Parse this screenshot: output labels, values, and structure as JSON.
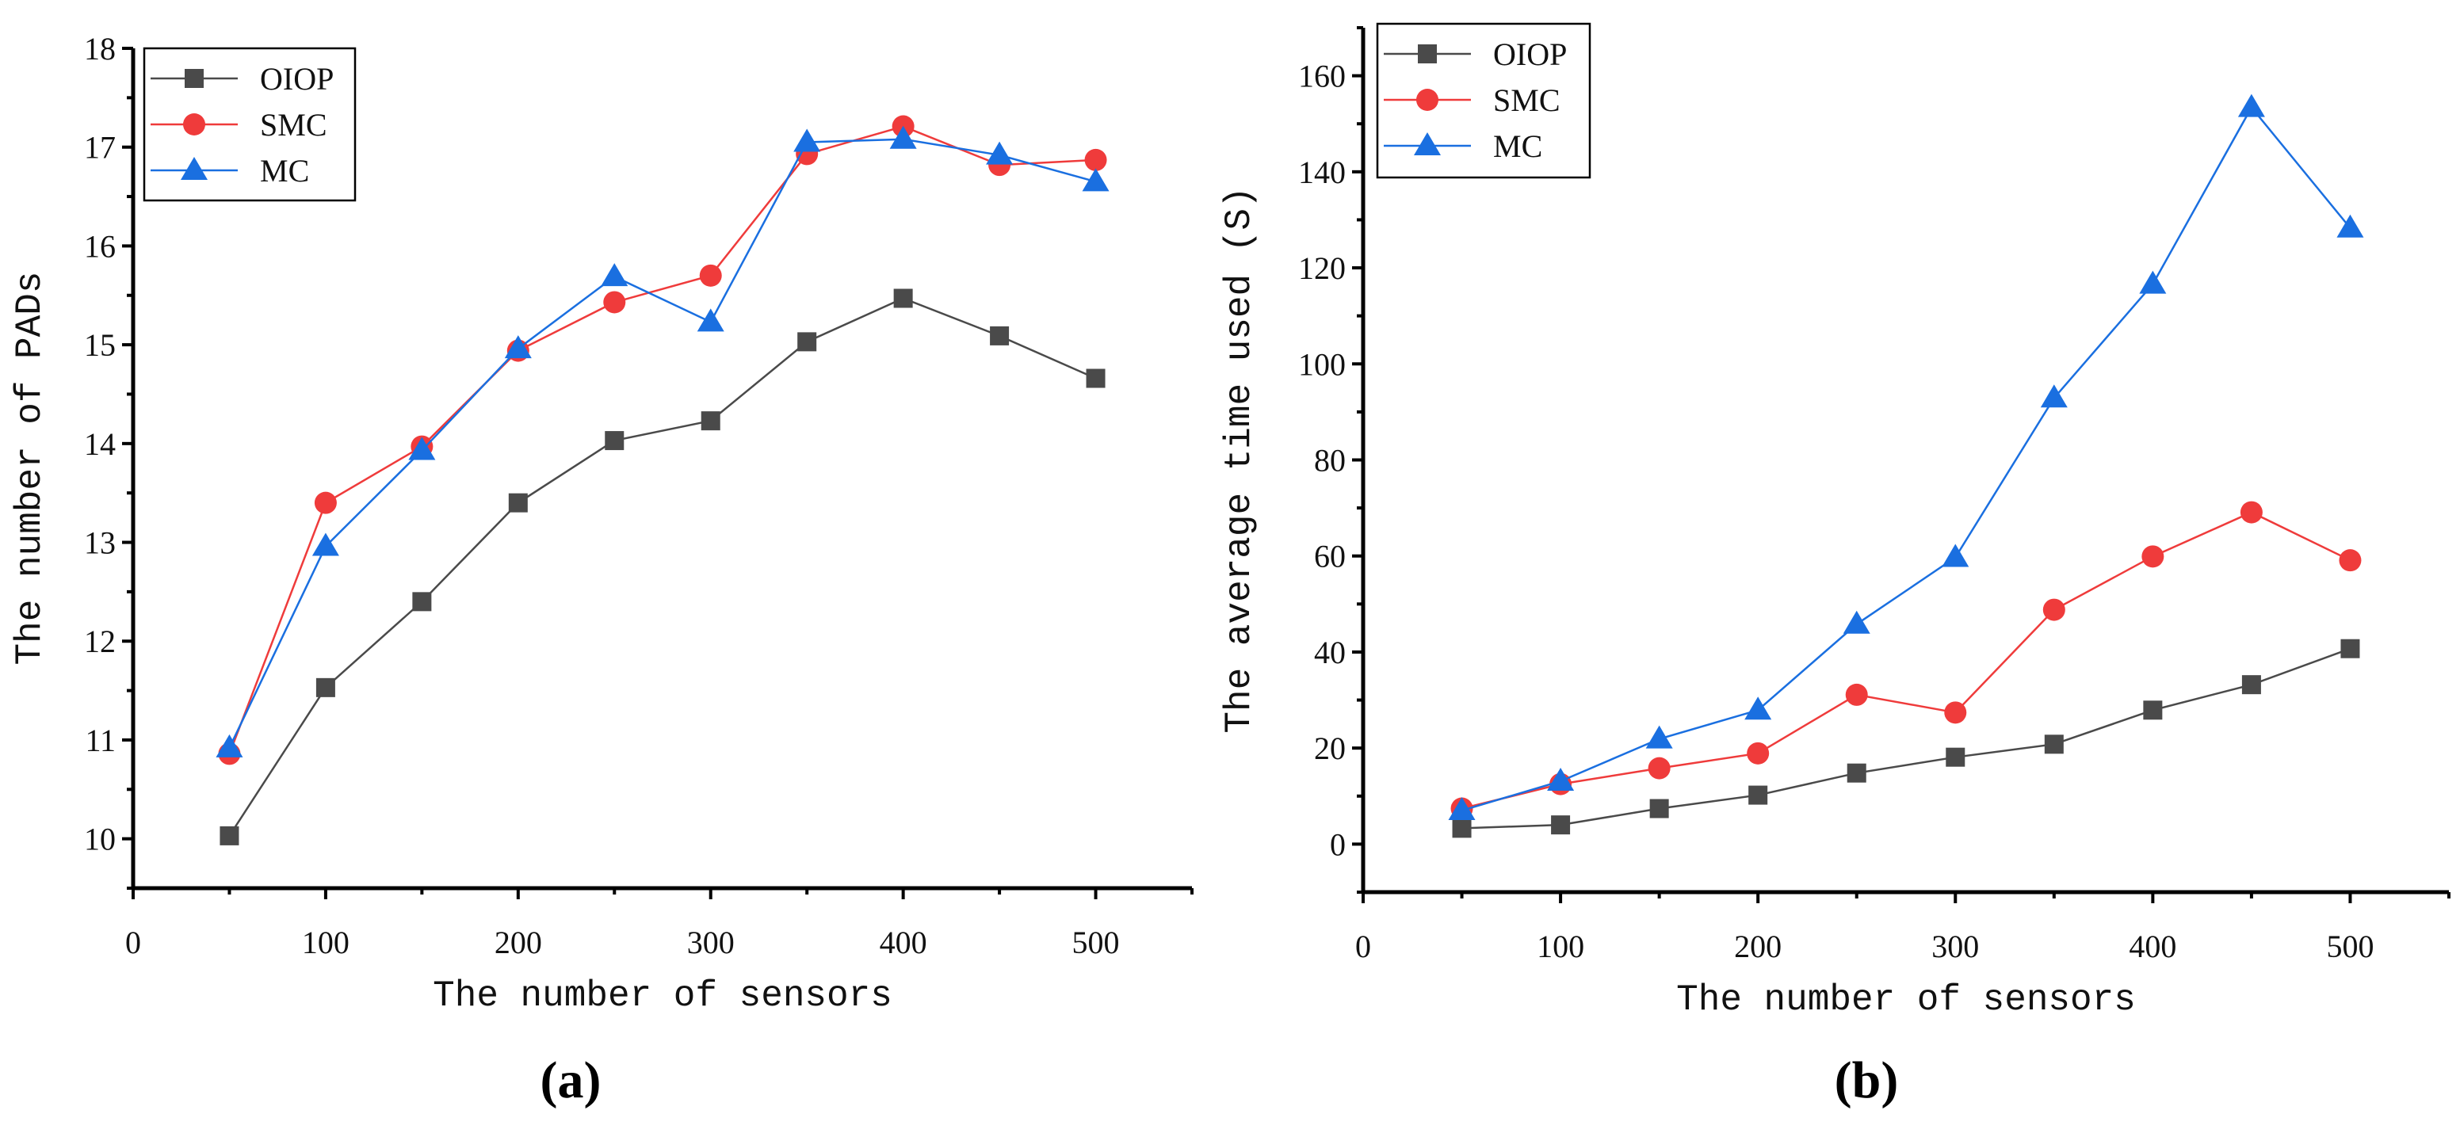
{
  "chart_data": [
    {
      "type": "line",
      "panel_label": "(a)",
      "title": "",
      "xlabel": "The number of sensors",
      "ylabel": "The number of PADs",
      "xlim": [
        0,
        550
      ],
      "ylim": [
        9.5,
        18
      ],
      "xticks": [
        0,
        100,
        200,
        300,
        400,
        500
      ],
      "yticks": [
        10,
        11,
        12,
        13,
        14,
        15,
        16,
        17,
        18
      ],
      "legend": "top-left",
      "grid": false,
      "x": [
        50,
        100,
        150,
        200,
        250,
        300,
        350,
        400,
        450,
        500
      ],
      "series": [
        {
          "name": "OIOP",
          "color": "#4a4a4a",
          "marker": "square",
          "values": [
            10.03,
            11.53,
            12.4,
            13.4,
            14.03,
            14.23,
            15.03,
            15.47,
            15.09,
            14.66
          ]
        },
        {
          "name": "SMC",
          "color": "#ef3b3b",
          "marker": "circle",
          "values": [
            10.86,
            13.4,
            13.97,
            14.94,
            15.43,
            15.7,
            16.93,
            17.21,
            16.82,
            16.87
          ]
        },
        {
          "name": "MC",
          "color": "#1a6fe0",
          "marker": "triangle",
          "values": [
            10.92,
            12.96,
            13.93,
            14.96,
            15.69,
            15.23,
            17.05,
            17.08,
            16.92,
            16.65
          ]
        }
      ]
    },
    {
      "type": "line",
      "panel_label": "(b)",
      "title": "",
      "xlabel": "The number of sensors",
      "ylabel": "The average time used (S)",
      "xlim": [
        0,
        550
      ],
      "ylim": [
        -10,
        170
      ],
      "xticks": [
        0,
        100,
        200,
        300,
        400,
        500
      ],
      "yticks": [
        0,
        20,
        40,
        60,
        80,
        100,
        120,
        140,
        160
      ],
      "legend": "top-left",
      "grid": false,
      "x": [
        50,
        100,
        150,
        200,
        250,
        300,
        350,
        400,
        450,
        500
      ],
      "series": [
        {
          "name": "OIOP",
          "color": "#4a4a4a",
          "marker": "square",
          "values": [
            3.3,
            4.0,
            7.4,
            10.2,
            14.8,
            18.1,
            20.8,
            27.9,
            33.2,
            40.7
          ]
        },
        {
          "name": "SMC",
          "color": "#ef3b3b",
          "marker": "circle",
          "values": [
            7.4,
            12.5,
            15.8,
            18.9,
            31.1,
            27.4,
            48.8,
            59.9,
            69.1,
            59.1
          ]
        },
        {
          "name": "MC",
          "color": "#1a6fe0",
          "marker": "triangle",
          "values": [
            7.0,
            13.1,
            21.9,
            27.9,
            45.8,
            59.7,
            92.9,
            116.6,
            153.4,
            128.3
          ]
        }
      ]
    }
  ]
}
